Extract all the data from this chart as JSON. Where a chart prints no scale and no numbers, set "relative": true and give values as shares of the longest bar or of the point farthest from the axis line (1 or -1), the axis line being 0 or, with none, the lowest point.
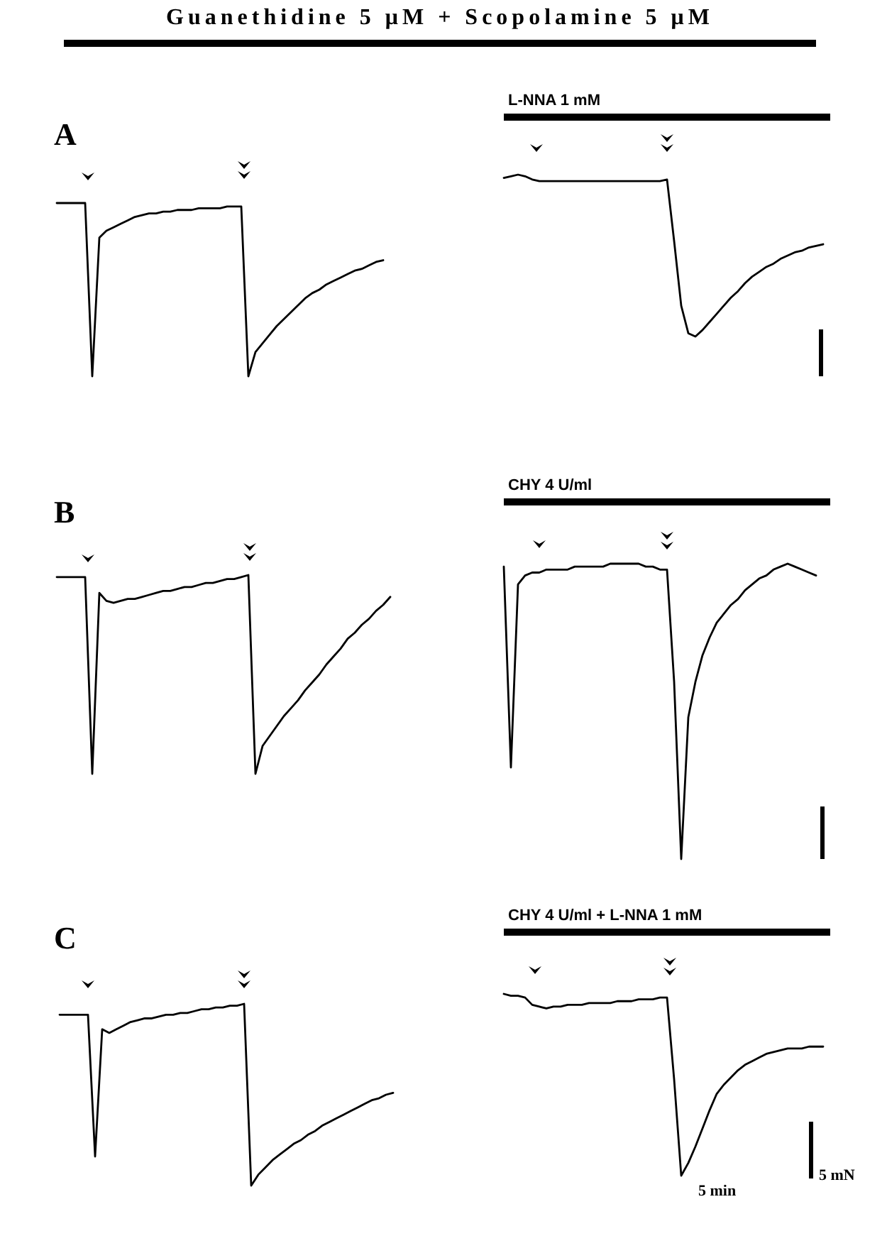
{
  "chart_data": [
    {
      "type": "line",
      "title": "A",
      "annotations": [
        "Guanethidine 5 μM + Scopolamine 5 μM"
      ],
      "relative": true,
      "line_style": "solid",
      "categories": [
        null,
        null,
        null,
        null,
        null,
        null,
        null,
        null,
        null,
        null,
        null,
        null,
        null,
        null,
        null,
        null,
        null,
        null,
        null,
        null,
        null,
        null,
        null,
        null,
        null,
        null,
        null,
        null,
        null,
        null,
        null,
        null,
        null,
        null,
        null,
        null,
        null,
        null,
        null,
        null,
        null,
        null,
        null,
        null,
        null,
        null,
        null
      ],
      "series": [
        {
          "color": "#000000",
          "values": [
            1.0,
            1.0,
            1.0,
            1.0,
            1.0,
            0,
            0.8,
            0.84,
            0.86,
            0.88,
            0.9,
            0.92,
            0.93,
            0.94,
            0.94,
            0.95,
            0.95,
            0.96,
            0.96,
            0.96,
            0.97,
            0.97,
            0.97,
            0.97,
            0.98,
            0.98,
            0.98,
            0,
            0.14,
            0.19,
            0.24,
            0.29,
            0.33,
            0.37,
            0.41,
            0.45,
            0.48,
            0.5,
            0.53,
            0.55,
            0.57,
            0.59,
            0.61,
            0.62,
            0.64,
            0.66,
            0.67
          ]
        }
      ]
    },
    {
      "type": "line",
      "title": "L-NNA 1 mM",
      "relative": true,
      "line_style": "solid",
      "categories": [
        null,
        null,
        null,
        null,
        null,
        null,
        null,
        null,
        null,
        null,
        null,
        null,
        null,
        null,
        null,
        null,
        null,
        null,
        null,
        null,
        null,
        null,
        null,
        null,
        null,
        null,
        null,
        null,
        null,
        null,
        null,
        null,
        null,
        null,
        null,
        null,
        null,
        null,
        null,
        null,
        null,
        null,
        null,
        null,
        null,
        null
      ],
      "series": [
        {
          "color": "#000000",
          "values": [
            0.98,
            0.99,
            1.0,
            0.99,
            0.97,
            0.96,
            0.96,
            0.96,
            0.96,
            0.96,
            0.96,
            0.96,
            0.96,
            0.96,
            0.96,
            0.96,
            0.96,
            0.96,
            0.96,
            0.96,
            0.96,
            0.96,
            0.96,
            0.97,
            0.59,
            0.19,
            0.02,
            0,
            0.04,
            0.09,
            0.14,
            0.19,
            0.24,
            0.28,
            0.33,
            0.37,
            0.4,
            0.43,
            0.45,
            0.48,
            0.5,
            0.52,
            0.53,
            0.55,
            0.56,
            0.57
          ]
        }
      ]
    },
    {
      "type": "line",
      "title": "B",
      "relative": true,
      "line_style": "solid",
      "categories": [
        null,
        null,
        null,
        null,
        null,
        null,
        null,
        null,
        null,
        null,
        null,
        null,
        null,
        null,
        null,
        null,
        null,
        null,
        null,
        null,
        null,
        null,
        null,
        null,
        null,
        null,
        null,
        null,
        null,
        null,
        null,
        null,
        null,
        null,
        null,
        null,
        null,
        null,
        null,
        null,
        null,
        null,
        null,
        null,
        null,
        null,
        null,
        null
      ],
      "series": [
        {
          "color": "#000000",
          "values": [
            0.99,
            0.99,
            0.99,
            0.99,
            0.99,
            0,
            0.91,
            0.87,
            0.86,
            0.87,
            0.88,
            0.88,
            0.89,
            0.9,
            0.91,
            0.92,
            0.92,
            0.93,
            0.94,
            0.94,
            0.95,
            0.96,
            0.96,
            0.97,
            0.98,
            0.98,
            0.99,
            1.0,
            0,
            0.14,
            0.19,
            0.24,
            0.29,
            0.33,
            0.37,
            0.42,
            0.46,
            0.5,
            0.55,
            0.59,
            0.63,
            0.68,
            0.71,
            0.75,
            0.78,
            0.82,
            0.85,
            0.89
          ]
        }
      ]
    },
    {
      "type": "line",
      "title": "CHY 4 U/ml",
      "relative": true,
      "line_style": "solid",
      "categories": [
        null,
        null,
        null,
        null,
        null,
        null,
        null,
        null,
        null,
        null,
        null,
        null,
        null,
        null,
        null,
        null,
        null,
        null,
        null,
        null,
        null,
        null,
        null,
        null,
        null,
        null,
        null,
        null,
        null,
        null,
        null,
        null,
        null,
        null,
        null,
        null,
        null,
        null,
        null,
        null,
        null,
        null,
        null,
        null,
        null
      ],
      "series": [
        {
          "color": "#000000",
          "values": [
            0.99,
            0.31,
            0.93,
            0.96,
            0.97,
            0.97,
            0.98,
            0.98,
            0.98,
            0.98,
            0.99,
            0.99,
            0.99,
            0.99,
            0.99,
            1.0,
            1.0,
            1.0,
            1.0,
            1.0,
            0.99,
            0.99,
            0.98,
            0.98,
            0.6,
            0,
            0.48,
            0.6,
            0.69,
            0.75,
            0.8,
            0.83,
            0.86,
            0.88,
            0.91,
            0.93,
            0.95,
            0.96,
            0.98,
            0.99,
            1.0,
            0.99,
            0.98,
            0.97,
            0.96
          ]
        }
      ]
    },
    {
      "type": "line",
      "title": "C",
      "relative": true,
      "line_style": "solid",
      "categories": [
        null,
        null,
        null,
        null,
        null,
        null,
        null,
        null,
        null,
        null,
        null,
        null,
        null,
        null,
        null,
        null,
        null,
        null,
        null,
        null,
        null,
        null,
        null,
        null,
        null,
        null,
        null,
        null,
        null,
        null,
        null,
        null,
        null,
        null,
        null,
        null,
        null,
        null,
        null,
        null,
        null,
        null,
        null,
        null,
        null,
        null,
        null,
        null
      ],
      "series": [
        {
          "color": "#000000",
          "values": [
            0.94,
            0.94,
            0.94,
            0.94,
            0.94,
            0.16,
            0.86,
            0.84,
            0.86,
            0.88,
            0.9,
            0.91,
            0.92,
            0.92,
            0.93,
            0.94,
            0.94,
            0.95,
            0.95,
            0.96,
            0.97,
            0.97,
            0.98,
            0.98,
            0.99,
            0.99,
            1.0,
            0,
            0.06,
            0.1,
            0.14,
            0.17,
            0.2,
            0.23,
            0.25,
            0.28,
            0.3,
            0.33,
            0.35,
            0.37,
            0.39,
            0.41,
            0.43,
            0.45,
            0.47,
            0.48,
            0.5,
            0.51
          ]
        }
      ]
    },
    {
      "type": "line",
      "title": "CHY 4 U/ml + L-NNA 1 mM",
      "annotations": [
        "5 min",
        "5 mN"
      ],
      "relative": true,
      "line_style": "solid",
      "categories": [
        null,
        null,
        null,
        null,
        null,
        null,
        null,
        null,
        null,
        null,
        null,
        null,
        null,
        null,
        null,
        null,
        null,
        null,
        null,
        null,
        null,
        null,
        null,
        null,
        null,
        null,
        null,
        null,
        null,
        null,
        null,
        null,
        null,
        null,
        null,
        null,
        null,
        null,
        null,
        null,
        null,
        null,
        null,
        null,
        null,
        null
      ],
      "series": [
        {
          "color": "#000000",
          "values": [
            1.0,
            0.99,
            0.99,
            0.98,
            0.94,
            0.93,
            0.92,
            0.93,
            0.93,
            0.94,
            0.94,
            0.94,
            0.95,
            0.95,
            0.95,
            0.95,
            0.96,
            0.96,
            0.96,
            0.97,
            0.97,
            0.97,
            0.98,
            0.98,
            0.53,
            0,
            0.07,
            0.16,
            0.26,
            0.36,
            0.45,
            0.5,
            0.54,
            0.58,
            0.61,
            0.63,
            0.65,
            0.67,
            0.68,
            0.69,
            0.7,
            0.7,
            0.7,
            0.71,
            0.71,
            0.71
          ]
        }
      ]
    }
  ]
}
